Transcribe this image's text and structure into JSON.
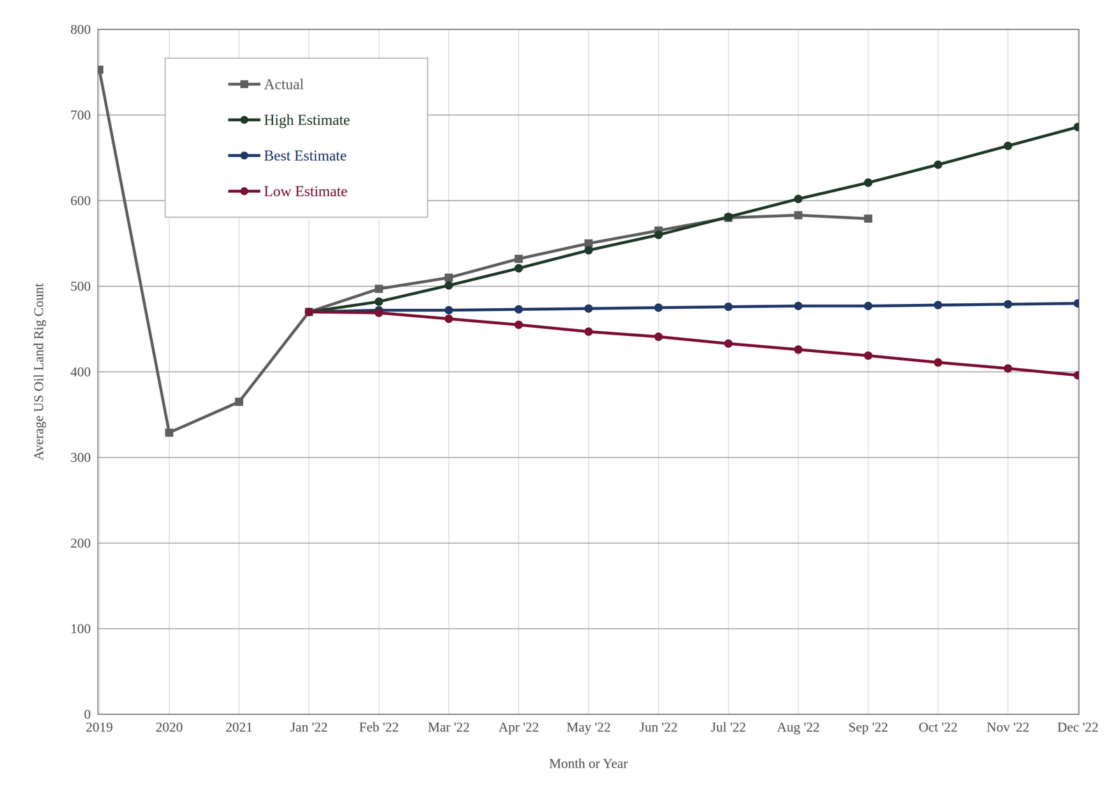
{
  "chart_data": {
    "type": "line",
    "x_label": "Month or Year",
    "y_label": "Average US Oil Land Rig Count",
    "categories": [
      "2019",
      "2020",
      "2021",
      "Jan '22",
      "Feb '22",
      "Mar '22",
      "Apr '22",
      "May '22",
      "Jun '22",
      "Jul '22",
      "Aug '22",
      "Sep '22",
      "Oct '22",
      "Nov '22",
      "Dec '22"
    ],
    "series": [
      {
        "name": "Actual",
        "color": "#5f5f5f",
        "marker": "square",
        "values": [
          753,
          329,
          365,
          470,
          497,
          510,
          532,
          550,
          565,
          580,
          583,
          579,
          null,
          null,
          null
        ]
      },
      {
        "name": "High Estimate",
        "color": "#1f3a28",
        "marker": "circle",
        "values": [
          null,
          null,
          null,
          470,
          482,
          501,
          521,
          542,
          560,
          581,
          602,
          621,
          642,
          664,
          686
        ]
      },
      {
        "name": "Best Estimate",
        "color": "#1f3866",
        "marker": "circle",
        "values": [
          null,
          null,
          null,
          470,
          472,
          472,
          473,
          474,
          475,
          476,
          477,
          477,
          478,
          479,
          480
        ]
      },
      {
        "name": "Low Estimate",
        "color": "#7b1030",
        "marker": "circle",
        "values": [
          null,
          null,
          null,
          470,
          469,
          462,
          455,
          447,
          441,
          433,
          426,
          419,
          411,
          404,
          396
        ]
      }
    ],
    "ylim": [
      0,
      800
    ],
    "yticks": [
      0,
      100,
      200,
      300,
      400,
      500,
      600,
      700,
      800
    ],
    "grid": true,
    "legend": "top-left"
  }
}
